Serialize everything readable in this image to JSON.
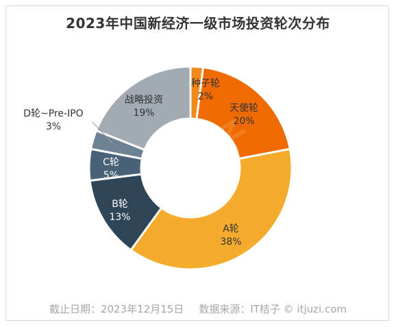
{
  "title": "2023年中国新经济一级市场投资轮次分布",
  "footer": {
    "date": "截止日期：2023年12月15日",
    "source": "数据来源：IT桔子 © itjuzi.com"
  },
  "watermark": {
    "brand": "IT桔子",
    "domain": "ITJUZI.COM"
  },
  "colors": {
    "种子轮": "#f08a1d",
    "天使轮": "#f06a00",
    "A轮": "#f5ab2c",
    "B轮": "#2e4558",
    "C轮": "#4a6277",
    "D轮~Pre-IPO": "#6e8295",
    "战略投资": "#a2aab3"
  },
  "chart_data": {
    "type": "pie",
    "donut": true,
    "title": "2023年中国新经济一级市场投资轮次分布",
    "slices": [
      {
        "label": "种子轮",
        "value_label": "2%",
        "value": 2
      },
      {
        "label": "天使轮",
        "value_label": "20%",
        "value": 20
      },
      {
        "label": "A轮",
        "value_label": "38%",
        "value": 38
      },
      {
        "label": "B轮",
        "value_label": "13%",
        "value": 13
      },
      {
        "label": "C轮",
        "value_label": "5%",
        "value": 5
      },
      {
        "label": "D轮~Pre-IPO",
        "value_label": "3%",
        "value": 3
      },
      {
        "label": "战略投资",
        "value_label": "19%",
        "value": 19
      }
    ]
  }
}
